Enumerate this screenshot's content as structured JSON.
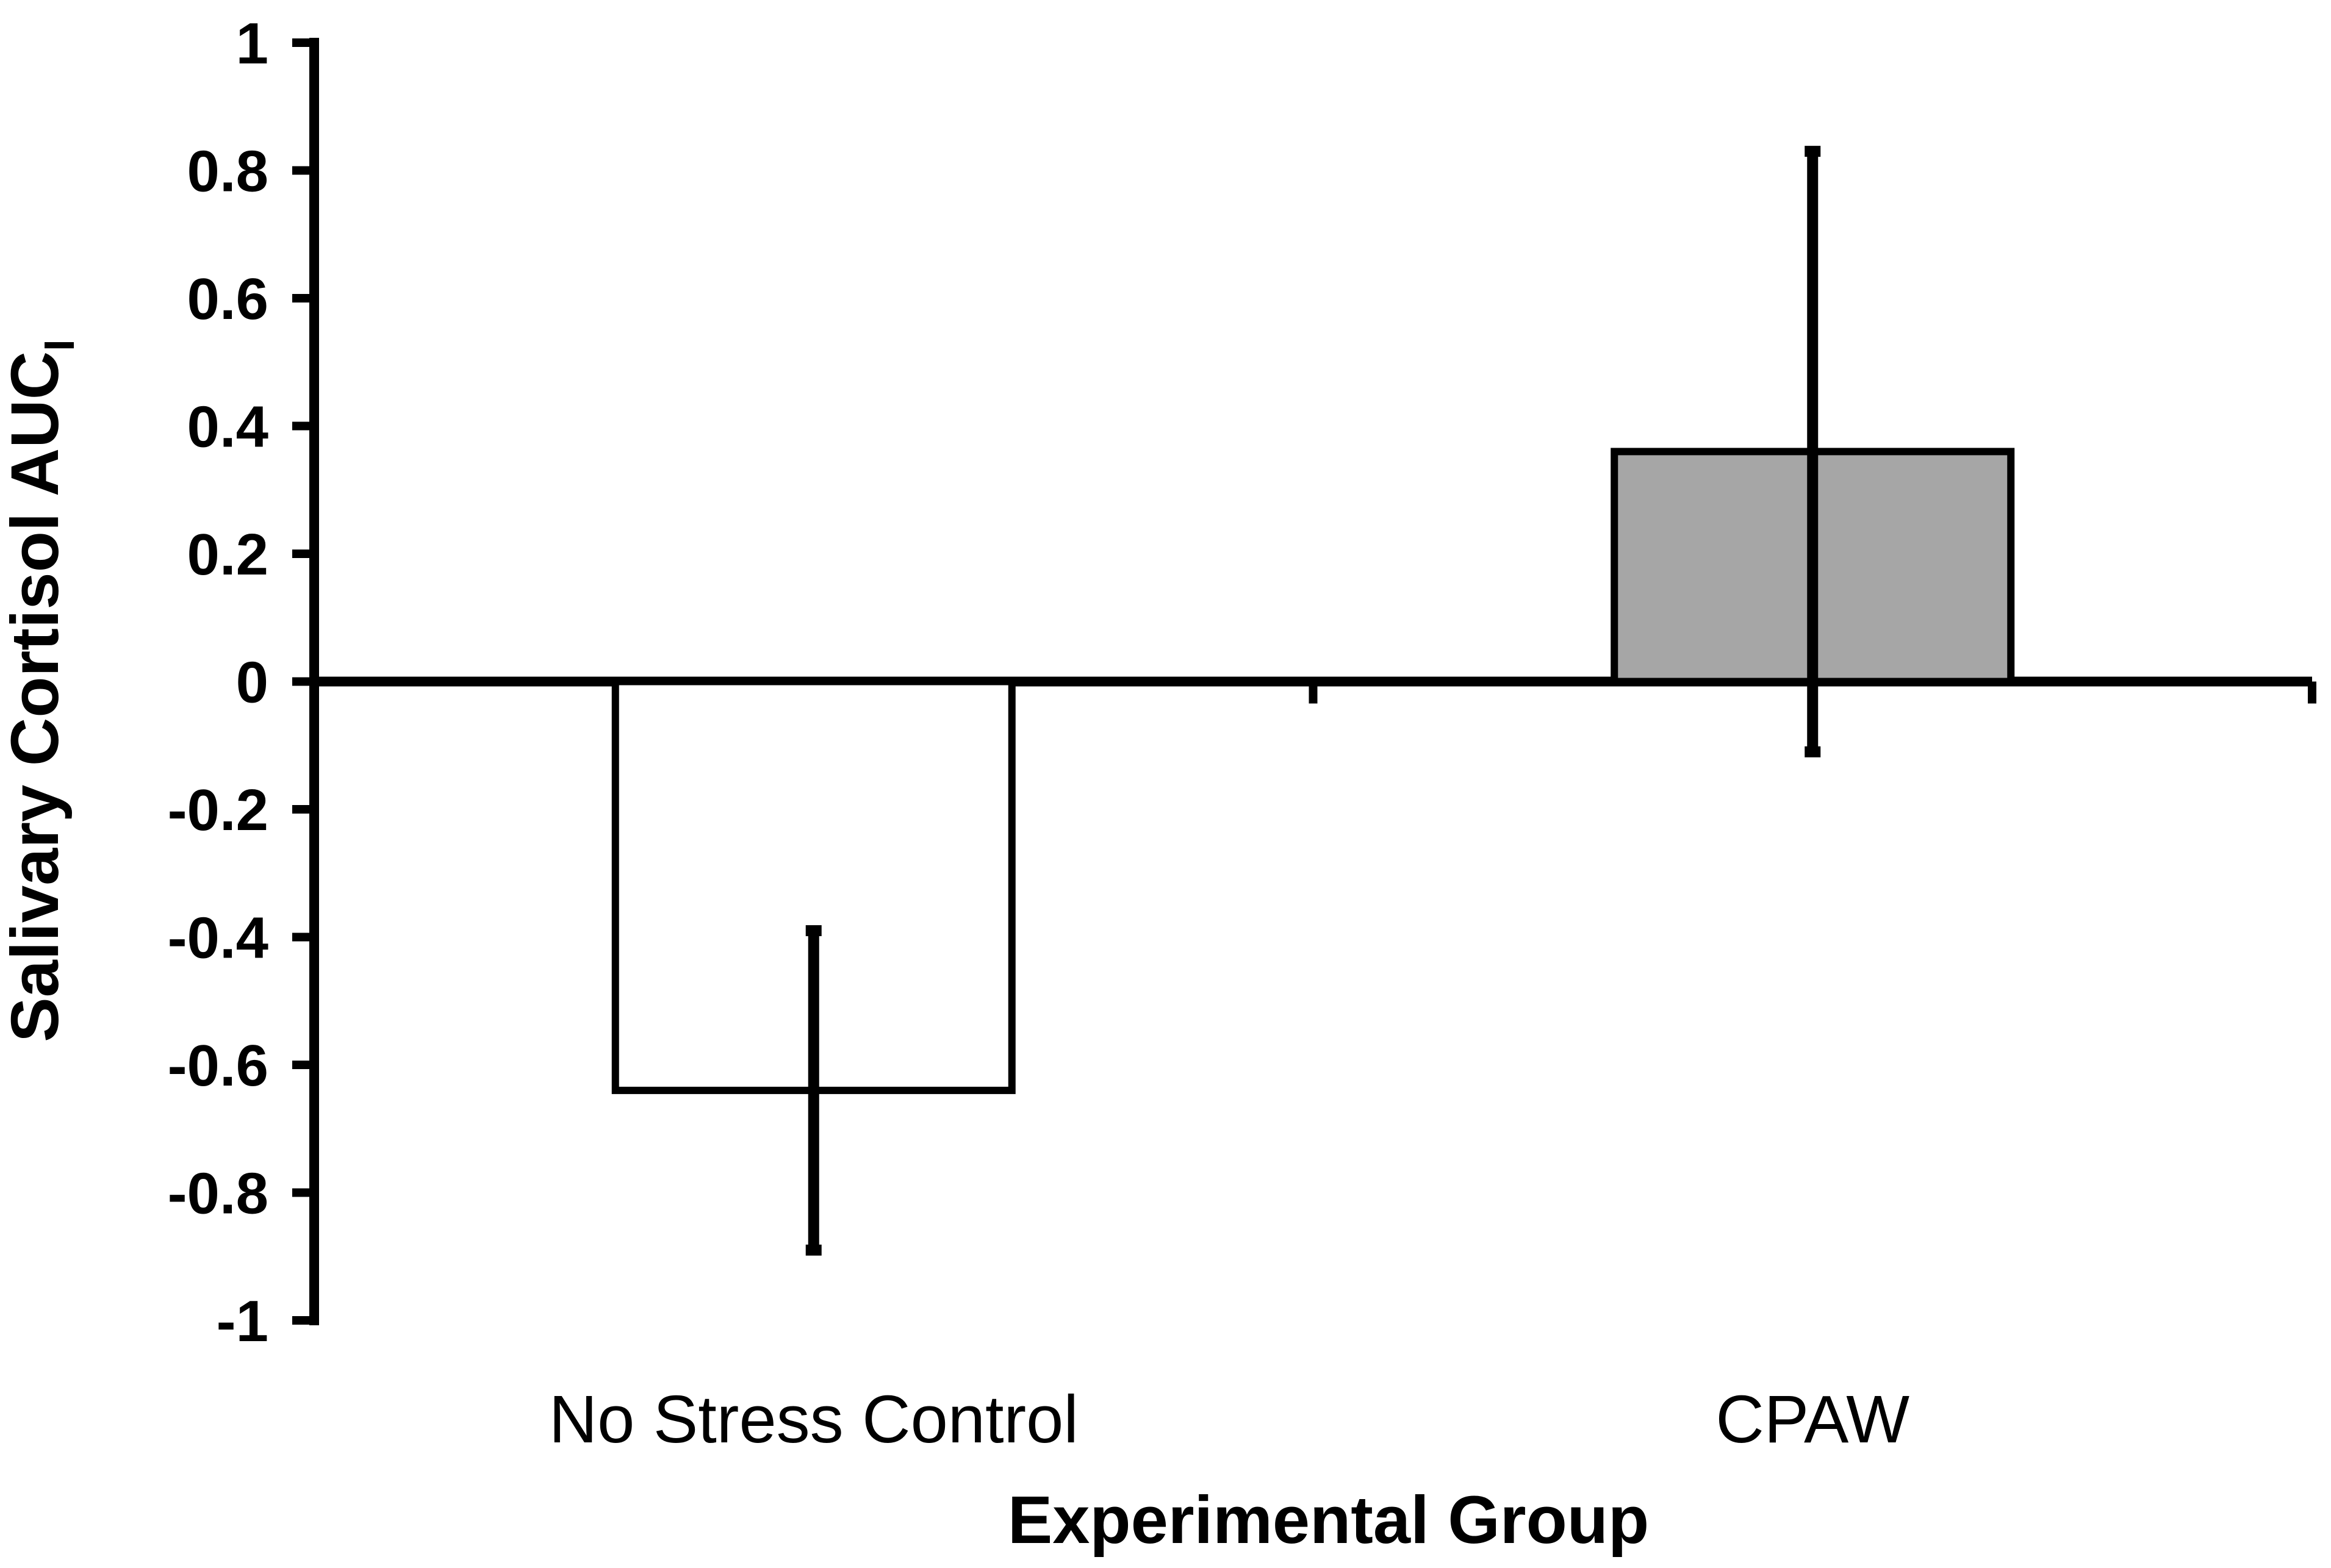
{
  "chart_data": {
    "type": "bar",
    "categories": [
      "No Stress Control",
      "CPAW"
    ],
    "values": [
      -0.64,
      0.36
    ],
    "error": [
      0.25,
      0.47
    ],
    "bar_colors": [
      "#ffffff",
      "#a6a6a6"
    ],
    "xlabel": "Experimental Group",
    "ylabel": "Salivary Cortisol AUC",
    "ylabel_subscript": "I",
    "ylim": [
      -1,
      1
    ],
    "yticks": [
      1,
      0.8,
      0.6,
      0.4,
      0.2,
      0,
      -0.2,
      -0.4,
      -0.6,
      -0.8,
      -1
    ],
    "ytick_labels": [
      "1",
      "0.8",
      "0.6",
      "0.4",
      "0.2",
      "0",
      "-0.2",
      "-0.4",
      "-0.6",
      "-0.8",
      "-1"
    ],
    "grid": false,
    "legend": "none"
  }
}
